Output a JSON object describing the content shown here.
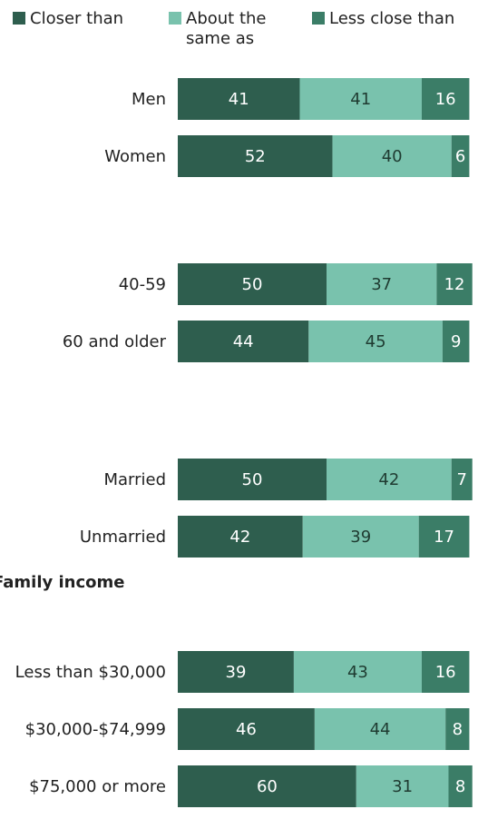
{
  "chart_data": {
    "type": "bar",
    "stacked": true,
    "orientation": "horizontal",
    "legend_position": "top",
    "series": [
      {
        "name": "Closer than",
        "color": "#2e5e4e"
      },
      {
        "name": "About the same as",
        "color": "#79c2ad"
      },
      {
        "name": "Less close than",
        "color": "#3b7d67"
      }
    ],
    "groups": [
      {
        "heading": "",
        "rows": [
          {
            "label": "Men",
            "values": [
              41,
              41,
              16
            ]
          },
          {
            "label": "Women",
            "values": [
              52,
              40,
              6
            ]
          }
        ]
      },
      {
        "heading": "",
        "rows": [
          {
            "label": "40-59",
            "values": [
              50,
              37,
              12
            ]
          },
          {
            "label": "60 and older",
            "values": [
              44,
              45,
              9
            ]
          }
        ]
      },
      {
        "heading": "",
        "rows": [
          {
            "label": "Married",
            "values": [
              50,
              42,
              7
            ]
          },
          {
            "label": "Unmarried",
            "values": [
              42,
              39,
              17
            ]
          }
        ]
      },
      {
        "heading": "Family income",
        "rows": [
          {
            "label": "Less than $30,000",
            "values": [
              39,
              43,
              16
            ]
          },
          {
            "label": "$30,000-$74,999",
            "values": [
              46,
              44,
              8
            ]
          },
          {
            "label": "$75,000 or more",
            "values": [
              60,
              31,
              8
            ]
          }
        ]
      }
    ]
  }
}
